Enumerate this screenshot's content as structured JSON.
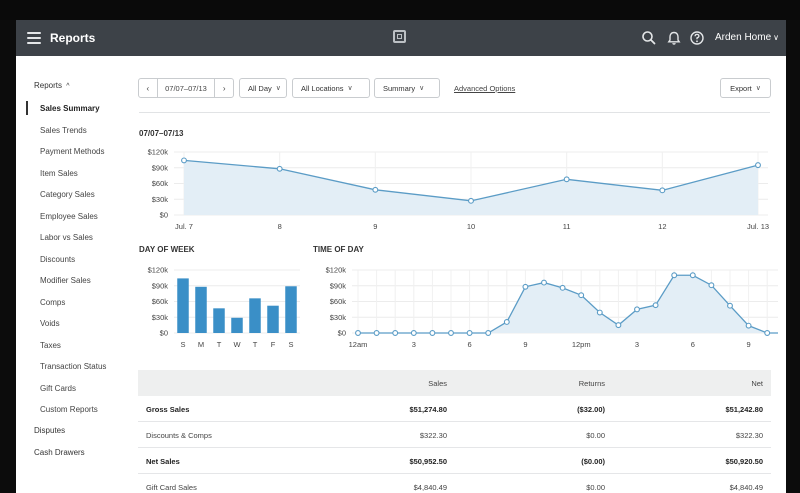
{
  "header": {
    "title": "Reports",
    "account": "Arden Home",
    "icons": [
      "menu-icon",
      "logo-icon",
      "search-icon",
      "bell-icon",
      "help-icon",
      "chevron-down-icon"
    ]
  },
  "sidebar": {
    "group_label": "Reports",
    "items": [
      {
        "label": "Sales Summary",
        "active": true
      },
      {
        "label": "Sales Trends"
      },
      {
        "label": "Payment Methods"
      },
      {
        "label": "Item Sales"
      },
      {
        "label": "Category Sales"
      },
      {
        "label": "Employee Sales"
      },
      {
        "label": "Labor vs Sales"
      },
      {
        "label": "Discounts"
      },
      {
        "label": "Modifier Sales"
      },
      {
        "label": "Comps"
      },
      {
        "label": "Voids"
      },
      {
        "label": "Taxes"
      },
      {
        "label": "Transaction Status"
      },
      {
        "label": "Gift Cards"
      },
      {
        "label": "Custom Reports"
      }
    ],
    "top_items": [
      "Disputes",
      "Cash Drawers"
    ]
  },
  "filters": {
    "prev": "‹",
    "date_range": "07/07–07/13",
    "next": "›",
    "day": "All Day",
    "locations": "All Locations",
    "view": "Summary",
    "advanced": "Advanced Options",
    "export": "Export"
  },
  "main": {
    "date_heading": "07/07–07/13",
    "day_of_week_heading": "DAY OF WEEK",
    "time_of_day_heading": "TIME OF DAY"
  },
  "chart_data": [
    {
      "type": "area",
      "categories": [
        "Jul. 7",
        "8",
        "9",
        "10",
        "11",
        "12",
        "Jul. 13"
      ],
      "values": [
        104000,
        88000,
        48000,
        27000,
        68000,
        47000,
        95000
      ],
      "yticks": [
        "$120k",
        "$90k",
        "$60k",
        "$30k",
        "$0"
      ],
      "ylim": [
        0,
        120000
      ],
      "grid": true,
      "color": "#5b9cc6"
    },
    {
      "type": "bar",
      "categories": [
        "S",
        "M",
        "T",
        "W",
        "T",
        "F",
        "S"
      ],
      "values": [
        104000,
        88000,
        47000,
        29000,
        66000,
        52000,
        89000
      ],
      "yticks": [
        "$120k",
        "$90k",
        "$60k",
        "$30k",
        "$0"
      ],
      "ylim": [
        0,
        120000
      ],
      "grid": true,
      "color": "#3a8fc7"
    },
    {
      "type": "area",
      "x": [
        0,
        1,
        2,
        3,
        4,
        5,
        6,
        7,
        8,
        9,
        10,
        11,
        12,
        13,
        14,
        15,
        16,
        17,
        18,
        19,
        20,
        21,
        22,
        23
      ],
      "xticks": [
        "12am",
        "3",
        "6",
        "9",
        "12pm",
        "3",
        "6",
        "9"
      ],
      "values": [
        0,
        0,
        0,
        0,
        0,
        0,
        0,
        0,
        21000,
        88000,
        96000,
        86000,
        72000,
        39000,
        15000,
        45000,
        53000,
        110000,
        110000,
        91000,
        52000,
        14000,
        0,
        0
      ],
      "yticks": [
        "$120k",
        "$90k",
        "$60k",
        "$30k",
        "$0"
      ],
      "ylim": [
        0,
        120000
      ],
      "grid": true,
      "color": "#5b9cc6"
    }
  ],
  "table": {
    "columns": [
      "",
      "Sales",
      "Returns",
      "Net"
    ],
    "rows": [
      {
        "label": "Gross Sales",
        "sales": "$51,274.80",
        "returns": "($32.00)",
        "net": "$51,242.80",
        "bold": true
      },
      {
        "label": "Discounts & Comps",
        "sales": "$322.30",
        "returns": "$0.00",
        "net": "$322.30"
      },
      {
        "label": "Net Sales",
        "sales": "$50,952.50",
        "returns": "($0.00)",
        "net": "$50,920.50",
        "bold": true
      },
      {
        "label": "Gift Card Sales",
        "sales": "$4,840.49",
        "returns": "$0.00",
        "net": "$4,840.49"
      }
    ]
  }
}
